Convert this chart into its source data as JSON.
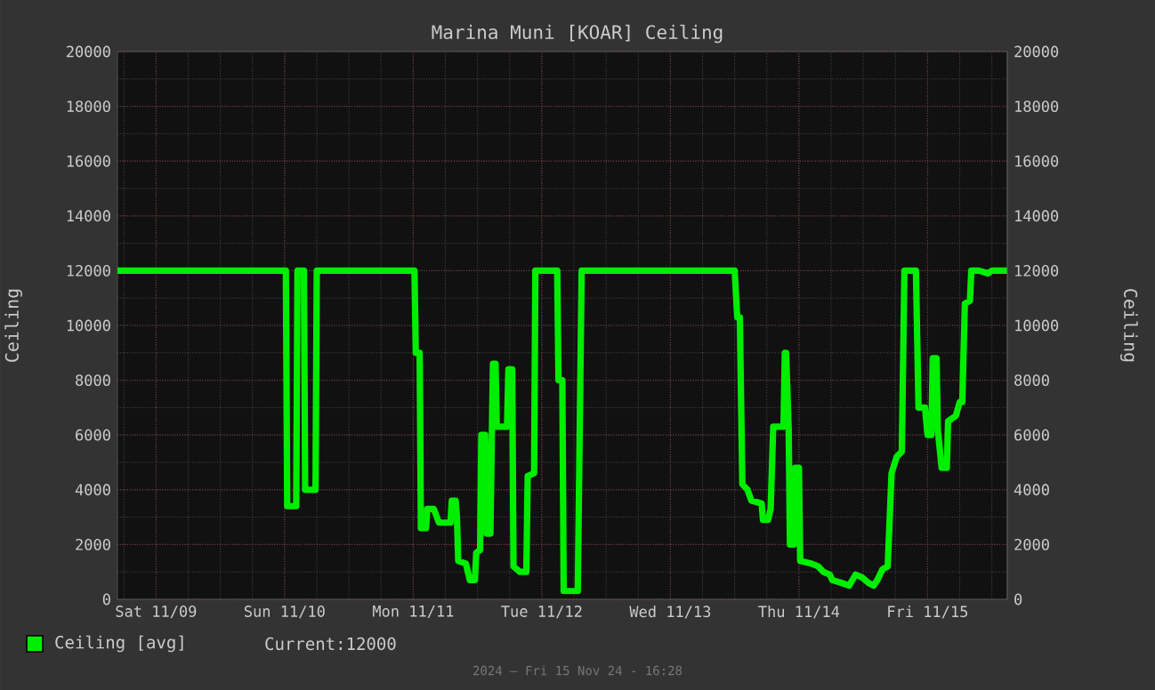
{
  "chart_data": {
    "type": "line",
    "title": "Marina Muni [KOAR] Ceiling",
    "ylabel": "Ceiling",
    "y2label": "Ceiling",
    "xlim": [
      "2024-11-08T16:48",
      "2024-11-15T14:53"
    ],
    "xticks": [
      {
        "value": "2024-11-09",
        "label": "Sat 11/09"
      },
      {
        "value": "2024-11-10",
        "label": "Sun 11/10"
      },
      {
        "value": "2024-11-11",
        "label": "Mon 11/11"
      },
      {
        "value": "2024-11-12",
        "label": "Tue 11/12"
      },
      {
        "value": "2024-11-13",
        "label": "Wed 11/13"
      },
      {
        "value": "2024-11-14",
        "label": "Thu 11/14"
      },
      {
        "value": "2024-11-15",
        "label": "Fri 11/15"
      }
    ],
    "ylim": [
      0,
      20000
    ],
    "yticks": [
      0,
      2000,
      4000,
      6000,
      8000,
      10000,
      12000,
      14000,
      16000,
      18000,
      20000
    ],
    "y2lim": [
      0,
      20000
    ],
    "y2ticks": [
      0,
      2000,
      4000,
      6000,
      8000,
      10000,
      12000,
      14000,
      16000,
      18000,
      20000
    ],
    "grid": true,
    "legend": "bottom left",
    "marker": "none",
    "line_style": "solid",
    "annotations": [
      "Current:12000",
      "2024 – Fri 15 Nov 24 - 16:28"
    ],
    "series": [
      {
        "name": "Ceiling [avg]",
        "color": "#00ee00",
        "x": [
          "2024-11-08T16:48",
          "2024-11-10T00:14",
          "2024-11-10T00:29",
          "2024-11-10T02:10",
          "2024-11-10T02:24",
          "2024-11-10T03:36",
          "2024-11-10T03:50",
          "2024-11-10T05:46",
          "2024-11-10T06:00",
          "2024-11-11T00:14",
          "2024-11-11T00:29",
          "2024-11-11T01:12",
          "2024-11-11T01:26",
          "2024-11-11T02:24",
          "2024-11-11T02:38",
          "2024-11-11T03:50",
          "2024-11-11T04:48",
          "2024-11-11T06:58",
          "2024-11-11T07:12",
          "2024-11-11T07:55",
          "2024-11-11T08:10",
          "2024-11-11T08:24",
          "2024-11-11T09:50",
          "2024-11-11T10:34",
          "2024-11-11T11:31",
          "2024-11-11T11:46",
          "2024-11-11T12:29",
          "2024-11-11T12:43",
          "2024-11-11T13:26",
          "2024-11-11T13:41",
          "2024-11-11T14:24",
          "2024-11-11T14:53",
          "2024-11-11T15:22",
          "2024-11-11T15:36",
          "2024-11-11T17:31",
          "2024-11-11T17:46",
          "2024-11-11T18:29",
          "2024-11-11T18:43",
          "2024-11-11T19:55",
          "2024-11-11T21:07",
          "2024-11-11T21:22",
          "2024-11-11T22:34",
          "2024-11-11T22:48",
          "2024-11-12T02:53",
          "2024-11-12T03:07",
          "2024-11-12T03:50",
          "2024-11-12T04:05",
          "2024-11-12T06:43",
          "2024-11-12T07:26",
          "2024-11-13T12:00",
          "2024-11-13T12:29",
          "2024-11-13T12:58",
          "2024-11-13T13:26",
          "2024-11-13T14:24",
          "2024-11-13T15:07",
          "2024-11-13T17:02",
          "2024-11-13T17:17",
          "2024-11-13T18:14",
          "2024-11-13T18:43",
          "2024-11-13T19:12",
          "2024-11-13T21:07",
          "2024-11-13T21:22",
          "2024-11-13T21:36",
          "2024-11-13T22:05",
          "2024-11-13T22:19",
          "2024-11-13T23:02",
          "2024-11-13T23:17",
          "2024-11-14T00:00",
          "2024-11-14T00:14",
          "2024-11-14T02:24",
          "2024-11-14T03:36",
          "2024-11-14T04:34",
          "2024-11-14T05:46",
          "2024-11-14T06:14",
          "2024-11-14T07:55",
          "2024-11-14T09:22",
          "2024-11-14T10:34",
          "2024-11-14T11:46",
          "2024-11-14T12:58",
          "2024-11-14T13:55",
          "2024-11-14T14:38",
          "2024-11-14T15:36",
          "2024-11-14T16:34",
          "2024-11-14T17:17",
          "2024-11-14T18:14",
          "2024-11-14T19:12",
          "2024-11-14T19:41",
          "2024-11-14T21:50",
          "2024-11-14T22:19",
          "2024-11-14T23:31",
          "2024-11-15T00:00",
          "2024-11-15T00:43",
          "2024-11-15T00:58",
          "2024-11-15T01:41",
          "2024-11-15T01:55",
          "2024-11-15T02:38",
          "2024-11-15T03:36",
          "2024-11-15T03:50",
          "2024-11-15T05:17",
          "2024-11-15T06:00",
          "2024-11-15T06:29",
          "2024-11-15T06:58",
          "2024-11-15T07:55",
          "2024-11-15T08:10",
          "2024-11-15T09:36",
          "2024-11-15T11:17",
          "2024-11-15T12:00",
          "2024-11-15T14:53"
        ],
        "values": [
          12000,
          12000,
          3400,
          3400,
          12000,
          12000,
          4000,
          4000,
          12000,
          12000,
          9000,
          9000,
          2600,
          2600,
          3300,
          3300,
          2800,
          2800,
          3600,
          3600,
          3000,
          1400,
          1300,
          700,
          700,
          1700,
          1800,
          6000,
          6000,
          2400,
          2400,
          8600,
          8600,
          6300,
          6300,
          8400,
          8400,
          1200,
          1000,
          1000,
          4500,
          4600,
          12000,
          12000,
          8000,
          8000,
          300,
          300,
          12000,
          12000,
          10300,
          10300,
          4200,
          4000,
          3600,
          3500,
          2900,
          2900,
          3300,
          6300,
          6300,
          9000,
          9000,
          6200,
          2000,
          2000,
          4800,
          4800,
          1400,
          1300,
          1200,
          1000,
          900,
          700,
          600,
          500,
          900,
          800,
          600,
          500,
          700,
          1100,
          1200,
          4600,
          5200,
          5400,
          12000,
          12000,
          7000,
          7000,
          6000,
          6000,
          8800,
          8800,
          6200,
          4800,
          4800,
          6500,
          6700,
          7200,
          7200,
          10800,
          10900,
          12000,
          12000,
          11900,
          12000,
          12000
        ]
      }
    ]
  }
}
